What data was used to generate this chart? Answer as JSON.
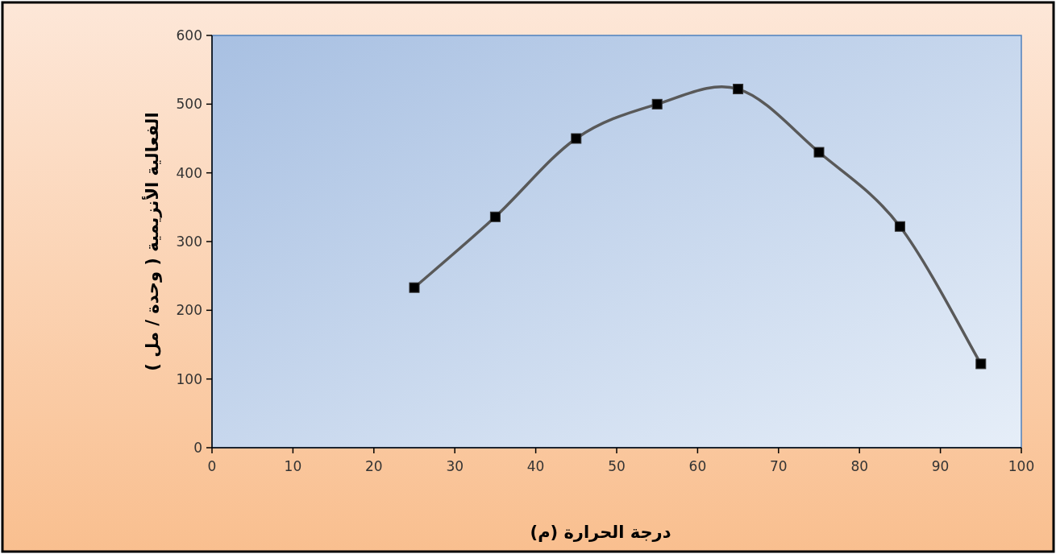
{
  "chart_data": {
    "type": "line",
    "xlabel": "درجة الحرارة (م)",
    "ylabel": "الفعالية  الأنزيمية ( وحدة / مل )",
    "x": [
      25,
      35,
      45,
      55,
      65,
      75,
      85,
      95
    ],
    "series": [
      {
        "color": "#595959",
        "values": [
          233,
          336,
          450,
          500,
          522,
          430,
          322,
          122
        ]
      }
    ],
    "xlim": [
      0,
      100
    ],
    "ylim": [
      0,
      600
    ],
    "xticks": [
      0,
      10,
      20,
      30,
      40,
      50,
      60,
      70,
      80,
      90,
      100
    ],
    "yticks": [
      0,
      100,
      200,
      300,
      400,
      500,
      600
    ],
    "marker": "square",
    "grid": false
  }
}
